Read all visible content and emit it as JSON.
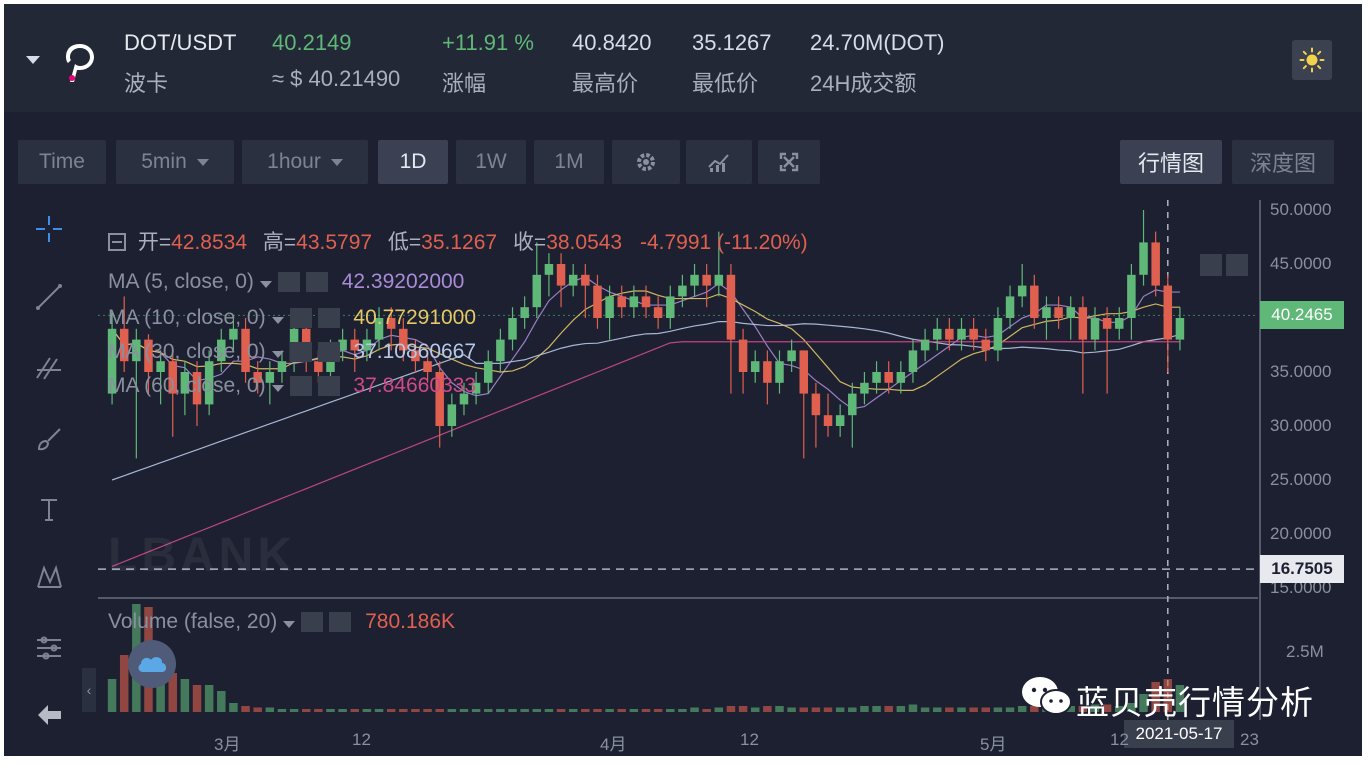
{
  "header": {
    "pair": "DOT/USDT",
    "name": "波卡",
    "price": "40.2149",
    "price_usd": "≈ $ 40.21490",
    "change": "+11.91 %",
    "change_label": "涨幅",
    "high": "40.8420",
    "high_label": "最高价",
    "low": "35.1267",
    "low_label": "最低价",
    "volume": "24.70M(DOT)",
    "volume_label": "24H成交额"
  },
  "toolbar": {
    "time": "Time",
    "interval_1": "5min",
    "interval_2": "1hour",
    "d1": "1D",
    "w1": "1W",
    "m1": "1M",
    "view_kline": "行情图",
    "view_depth": "深度图"
  },
  "ohlc": {
    "open_label": "开=",
    "open": "42.8534",
    "high_label": "高=",
    "high": "43.5797",
    "low_label": "低=",
    "low": "35.1267",
    "close_label": "收=",
    "close": "38.0543",
    "change": "-4.7991 (-11.20%)"
  },
  "indicators": {
    "ma5_label": "MA (5, close, 0)",
    "ma5_value": "42.39202000",
    "ma10_label": "MA (10, close, 0)",
    "ma10_value": "40.77291000",
    "ma30_label": "MA (30, close, 0)",
    "ma30_value": "37.10860667",
    "ma60_label": "MA (60, close, 0)",
    "ma60_value": "37.84660333",
    "volume_label": "Volume (false, 20)",
    "volume_value": "780.186K"
  },
  "y_axis_ticks": [
    "50.0000",
    "45.0000",
    "35.0000",
    "30.0000",
    "25.0000",
    "20.0000",
    "15.0000"
  ],
  "volume_axis_tick": "2.5M",
  "price_tag": "40.2465",
  "crosshair_tag": "16.7505",
  "x_axis_ticks": [
    "3月",
    "12",
    "4月",
    "12",
    "5月",
    "12",
    "23"
  ],
  "crosshair_date": "2021-05-17",
  "watermark_logo": "LBANK",
  "watermark_text": "蓝贝壳行情分析",
  "colors": {
    "up": "#5fb878",
    "down": "#e0604f",
    "ma5": "#a98bd6",
    "ma10": "#e4c766",
    "ma30": "#b8c7e8",
    "ma60": "#d04a8a",
    "bg": "#1c2030"
  },
  "chart_data": {
    "type": "candlestick",
    "series": [
      {
        "name": "MA (5, close, 0)",
        "last": 42.39202
      },
      {
        "name": "MA (10, close, 0)",
        "last": 40.77291
      },
      {
        "name": "MA (30, close, 0)",
        "last": 37.10860667
      },
      {
        "name": "MA (60, close, 0)",
        "last": 37.84660333
      }
    ],
    "ylim": [
      15,
      50
    ],
    "candles": [
      [
        33,
        39,
        40.5,
        32
      ],
      [
        39,
        36,
        42,
        35
      ],
      [
        36,
        38,
        39,
        27
      ],
      [
        38,
        35,
        38.5,
        33
      ],
      [
        35,
        36,
        37,
        32
      ],
      [
        36,
        33,
        37,
        29
      ],
      [
        33,
        35,
        36,
        31
      ],
      [
        35,
        32,
        36,
        30
      ],
      [
        32,
        36,
        37,
        31
      ],
      [
        36,
        38,
        39,
        35
      ],
      [
        38,
        39,
        40,
        37
      ],
      [
        39,
        35,
        40,
        34
      ],
      [
        35,
        34,
        36,
        33
      ],
      [
        34,
        35,
        36,
        32
      ],
      [
        35,
        36,
        37,
        34
      ],
      [
        36,
        39,
        40,
        35
      ],
      [
        39,
        36,
        40,
        35
      ],
      [
        36,
        35,
        37,
        34
      ],
      [
        35,
        37,
        38,
        33
      ],
      [
        37,
        38,
        39,
        36
      ],
      [
        38,
        37,
        39,
        35
      ],
      [
        37,
        38,
        39,
        36
      ],
      [
        38,
        40,
        41,
        37
      ],
      [
        40,
        39,
        41,
        37
      ],
      [
        39,
        37,
        40,
        36
      ],
      [
        37,
        36,
        38,
        35
      ],
      [
        36,
        35,
        37,
        34
      ],
      [
        35,
        30,
        36,
        28
      ],
      [
        30,
        32,
        33,
        29
      ],
      [
        32,
        33,
        34,
        31
      ],
      [
        33,
        34,
        35,
        32
      ],
      [
        34,
        36,
        37,
        33
      ],
      [
        36,
        38,
        39,
        35
      ],
      [
        38,
        40,
        41,
        37
      ],
      [
        40,
        41,
        42,
        39
      ],
      [
        41,
        44,
        47,
        40
      ],
      [
        44,
        45,
        46,
        42
      ],
      [
        45,
        43,
        46,
        41
      ],
      [
        43,
        44,
        45,
        42
      ],
      [
        44,
        43,
        45,
        40
      ],
      [
        43,
        40,
        44,
        39
      ],
      [
        40,
        42,
        43,
        38
      ],
      [
        42,
        41,
        43,
        40
      ],
      [
        41,
        42,
        43,
        40
      ],
      [
        42,
        41,
        43,
        40
      ],
      [
        41,
        40,
        42,
        39
      ],
      [
        40,
        42,
        43,
        39
      ],
      [
        42,
        43,
        44,
        41
      ],
      [
        43,
        44,
        45,
        42
      ],
      [
        44,
        43,
        45,
        41
      ],
      [
        43,
        44,
        48,
        42
      ],
      [
        44,
        38,
        45,
        33
      ],
      [
        38,
        35,
        39,
        33
      ],
      [
        35,
        36,
        37,
        34
      ],
      [
        36,
        34,
        37,
        32
      ],
      [
        34,
        36,
        37,
        33
      ],
      [
        36,
        37,
        38,
        35
      ],
      [
        37,
        33,
        37,
        27
      ],
      [
        33,
        31,
        34,
        28
      ],
      [
        31,
        30,
        33,
        29
      ],
      [
        30,
        31,
        32,
        29
      ],
      [
        31,
        33,
        34,
        28
      ],
      [
        33,
        34,
        35,
        32
      ],
      [
        34,
        35,
        36,
        33
      ],
      [
        35,
        34,
        36,
        33
      ],
      [
        34,
        35,
        36,
        33
      ],
      [
        35,
        37,
        38,
        34
      ],
      [
        37,
        38,
        39,
        36
      ],
      [
        38,
        39,
        40,
        37
      ],
      [
        39,
        38,
        40,
        37
      ],
      [
        38,
        39,
        40,
        37
      ],
      [
        39,
        38,
        40,
        37
      ],
      [
        38,
        37,
        39,
        36
      ],
      [
        37,
        40,
        41,
        36
      ],
      [
        40,
        42,
        43,
        39
      ],
      [
        42,
        43,
        45,
        41
      ],
      [
        43,
        40,
        44,
        39
      ],
      [
        40,
        41,
        42,
        38
      ],
      [
        41,
        40,
        42,
        39
      ],
      [
        40,
        41,
        42,
        38
      ],
      [
        41,
        38,
        42,
        33
      ],
      [
        38,
        40,
        41,
        37
      ],
      [
        40,
        39,
        41,
        33
      ],
      [
        39,
        40,
        41,
        38
      ],
      [
        40,
        44,
        45,
        38
      ],
      [
        44,
        47,
        50,
        43
      ],
      [
        47,
        43,
        48,
        42
      ],
      [
        43,
        38,
        44,
        35
      ],
      [
        38,
        40,
        41,
        37
      ]
    ],
    "volumes": [
      22,
      38,
      72,
      70,
      40,
      26,
      22,
      18,
      18,
      14,
      6,
      4,
      3,
      3,
      2,
      2,
      2,
      2,
      2,
      2,
      2,
      2,
      2,
      2,
      2,
      2,
      2,
      2,
      2,
      2,
      2,
      2,
      2,
      2,
      2,
      2,
      2,
      2,
      2,
      2,
      2,
      2,
      2,
      2,
      2,
      2,
      2,
      2,
      3,
      2,
      3,
      4,
      4,
      3,
      4,
      4,
      3,
      3,
      3,
      3,
      3,
      3,
      4,
      4,
      4,
      4,
      5,
      3,
      3,
      3,
      3,
      3,
      3,
      3,
      3,
      4,
      4,
      4,
      4,
      4,
      4,
      5,
      5,
      4,
      6,
      12,
      20,
      22,
      18
    ],
    "x_ticks": [
      "3月",
      "12",
      "4月",
      "12",
      "5月",
      "12",
      "23"
    ]
  }
}
